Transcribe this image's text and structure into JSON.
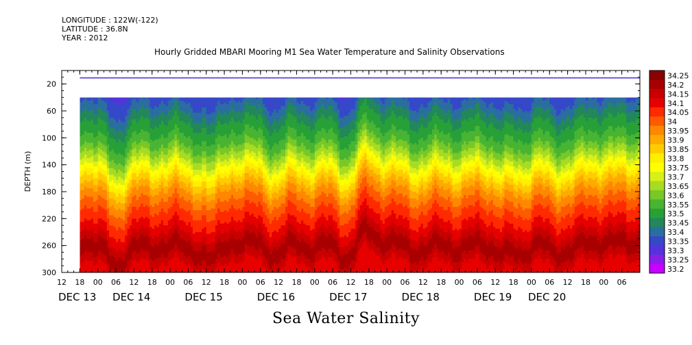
{
  "header_lines": [
    "LONGITUDE : 122W(-122)",
    "LATITUDE : 36.8N",
    "YEAR : 2012"
  ],
  "chart_data": {
    "type": "heatmap",
    "title": "Hourly Gridded MBARI Mooring M1 Sea Water Temperature and Salinity Observations",
    "caption": "Sea Water Salinity",
    "xlabel": "",
    "ylabel": "DEPTH (m)",
    "x_time_range_hours": [
      -6,
      186
    ],
    "data_start_hour": 0,
    "y_range": [
      0,
      300
    ],
    "y_ticks": [
      20,
      60,
      100,
      140,
      180,
      220,
      260,
      300
    ],
    "x_hour_ticks": [
      {
        "h": -6,
        "label": "12"
      },
      {
        "h": 0,
        "label": "18"
      },
      {
        "h": 6,
        "label": "00"
      },
      {
        "h": 12,
        "label": "06"
      },
      {
        "h": 18,
        "label": "12"
      },
      {
        "h": 24,
        "label": "18"
      },
      {
        "h": 30,
        "label": "00"
      },
      {
        "h": 36,
        "label": "06"
      },
      {
        "h": 42,
        "label": "12"
      },
      {
        "h": 48,
        "label": "18"
      },
      {
        "h": 54,
        "label": "00"
      },
      {
        "h": 60,
        "label": "06"
      },
      {
        "h": 66,
        "label": "12"
      },
      {
        "h": 72,
        "label": "18"
      },
      {
        "h": 78,
        "label": "00"
      },
      {
        "h": 84,
        "label": "06"
      },
      {
        "h": 90,
        "label": "12"
      },
      {
        "h": 96,
        "label": "18"
      },
      {
        "h": 102,
        "label": "00"
      },
      {
        "h": 108,
        "label": "06"
      },
      {
        "h": 114,
        "label": "12"
      },
      {
        "h": 120,
        "label": "18"
      },
      {
        "h": 126,
        "label": "00"
      },
      {
        "h": 132,
        "label": "06"
      },
      {
        "h": 138,
        "label": "12"
      },
      {
        "h": 144,
        "label": "18"
      },
      {
        "h": 150,
        "label": "00"
      },
      {
        "h": 156,
        "label": "06"
      },
      {
        "h": 162,
        "label": "12"
      },
      {
        "h": 168,
        "label": "18"
      },
      {
        "h": 174,
        "label": "00"
      },
      {
        "h": 180,
        "label": "06"
      }
    ],
    "x_day_labels": [
      {
        "h": -6,
        "label": "DEC 13"
      },
      {
        "h": 12,
        "label": "DEC 14"
      },
      {
        "h": 36,
        "label": "DEC 15"
      },
      {
        "h": 60,
        "label": "DEC 16"
      },
      {
        "h": 84,
        "label": "DEC 17"
      },
      {
        "h": 108,
        "label": "DEC 18"
      },
      {
        "h": 132,
        "label": "DEC 19"
      },
      {
        "h": 150,
        "label": "DEC 20"
      }
    ],
    "colorbar": {
      "levels": [
        "34.25",
        "34.2",
        "34.15",
        "34.1",
        "34.05",
        "34",
        "33.95",
        "33.9",
        "33.85",
        "33.8",
        "33.75",
        "33.7",
        "33.65",
        "33.6",
        "33.55",
        "33.5",
        "33.45",
        "33.4",
        "33.35",
        "33.3",
        "33.25",
        "33.2"
      ],
      "colors": [
        "#8b0000",
        "#a80000",
        "#c80000",
        "#e60000",
        "#ff2a00",
        "#ff5a00",
        "#ff8800",
        "#ffaa00",
        "#ffcc00",
        "#ffee00",
        "#ffff00",
        "#d9ef1a",
        "#a8dc23",
        "#78c828",
        "#48b432",
        "#28a038",
        "#22885a",
        "#2a6ea0",
        "#3548c8",
        "#5532dc",
        "#8a1ee8",
        "#c800ff"
      ]
    },
    "surface_band": {
      "depth_range": [
        10,
        12
      ],
      "color": "#6a4ae0"
    },
    "data_gap": {
      "depth_range": [
        12,
        40
      ]
    }
  }
}
